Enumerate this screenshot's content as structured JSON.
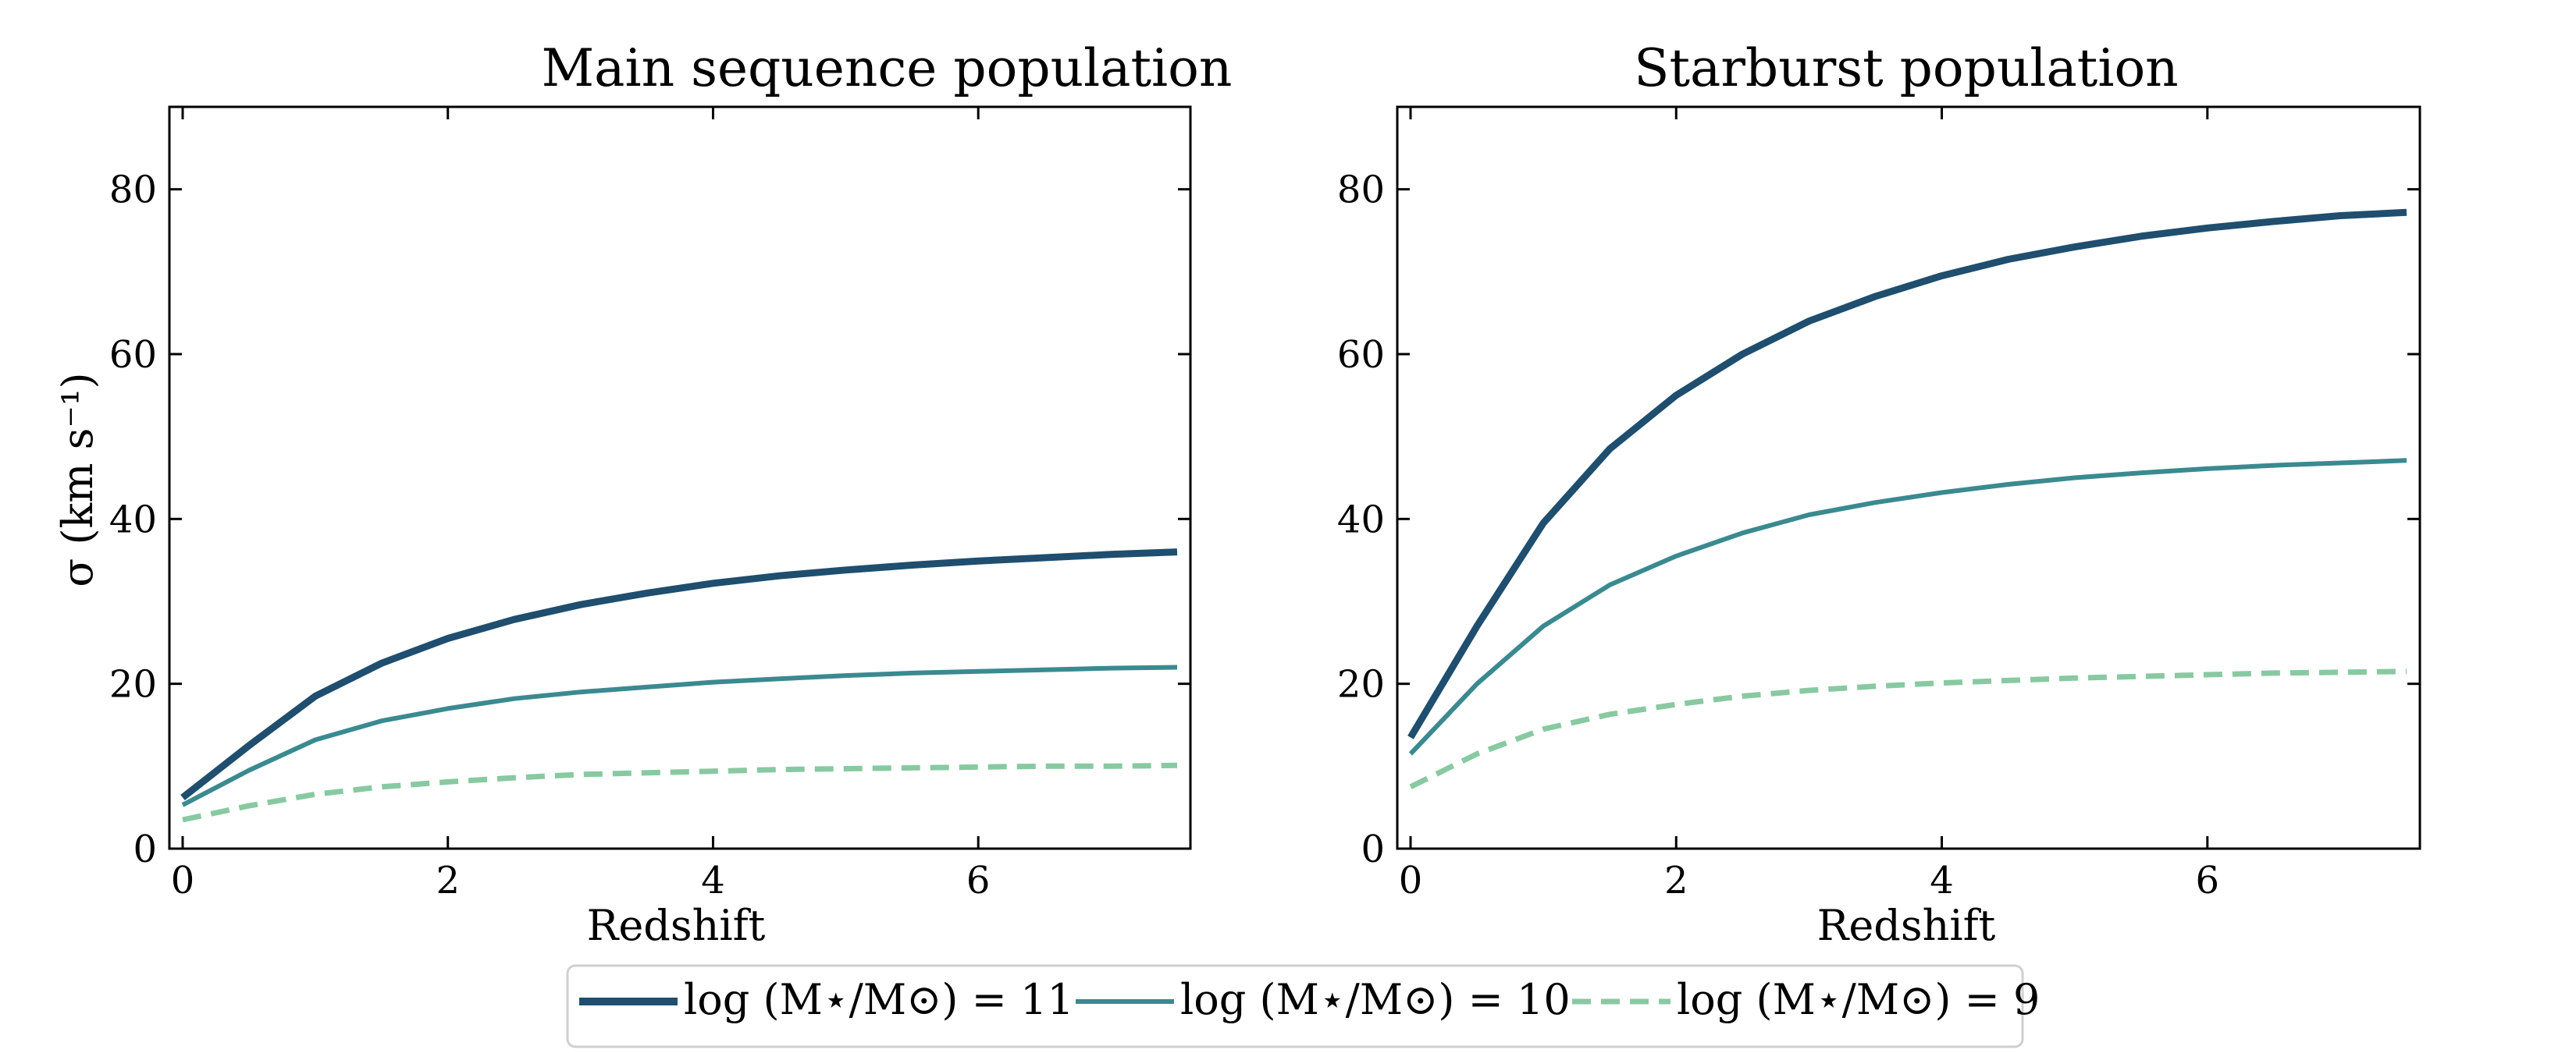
{
  "chart_data": [
    {
      "type": "line",
      "title": "Main sequence population",
      "xlabel": "Redshift",
      "ylabel": "σ (km s⁻¹)",
      "xlim": [
        -0.1,
        7.6
      ],
      "ylim": [
        0,
        90
      ],
      "xticks": [
        0,
        2,
        4,
        6
      ],
      "xtick_labels": [
        "0",
        "2",
        "4",
        "6"
      ],
      "yticks": [
        0,
        20,
        40,
        60,
        80
      ],
      "ytick_labels": [
        "0",
        "20",
        "40",
        "60",
        "80"
      ],
      "series": [
        {
          "name": "log (M⋆/M⊙) = 11",
          "x": [
            0,
            0.5,
            1,
            1.5,
            2,
            2.5,
            3,
            3.5,
            4,
            4.5,
            5,
            5.5,
            6,
            6.5,
            7,
            7.5
          ],
          "y": [
            6.2,
            12.5,
            18.5,
            22.5,
            25.5,
            27.8,
            29.6,
            31.0,
            32.2,
            33.1,
            33.8,
            34.4,
            34.9,
            35.3,
            35.7,
            36.0
          ]
        },
        {
          "name": "log (M⋆/M⊙) = 10",
          "x": [
            0,
            0.5,
            1,
            1.5,
            2,
            2.5,
            3,
            3.5,
            4,
            4.5,
            5,
            5.5,
            6,
            6.5,
            7,
            7.5
          ],
          "y": [
            5.3,
            9.5,
            13.2,
            15.5,
            17.0,
            18.2,
            19.0,
            19.6,
            20.2,
            20.6,
            21.0,
            21.3,
            21.5,
            21.7,
            21.9,
            22.0
          ]
        },
        {
          "name": "log (M⋆/M⊙) = 9",
          "x": [
            0,
            0.5,
            1,
            1.5,
            2,
            2.5,
            3,
            3.5,
            4,
            4.5,
            5,
            5.5,
            6,
            6.5,
            7,
            7.5
          ],
          "y": [
            3.5,
            5.2,
            6.6,
            7.5,
            8.1,
            8.6,
            9.0,
            9.2,
            9.4,
            9.6,
            9.7,
            9.8,
            9.9,
            10.0,
            10.0,
            10.1
          ]
        }
      ]
    },
    {
      "type": "line",
      "title": "Starburst population",
      "xlabel": "Redshift",
      "ylabel": "",
      "xlim": [
        -0.1,
        7.6
      ],
      "ylim": [
        0,
        90
      ],
      "xticks": [
        0,
        2,
        4,
        6
      ],
      "xtick_labels": [
        "0",
        "2",
        "4",
        "6"
      ],
      "yticks": [
        0,
        20,
        40,
        60,
        80
      ],
      "ytick_labels": [
        "0",
        "20",
        "40",
        "60",
        "80"
      ],
      "series": [
        {
          "name": "log (M⋆/M⊙) = 11",
          "x": [
            0,
            0.5,
            1,
            1.5,
            2,
            2.5,
            3,
            3.5,
            4,
            4.5,
            5,
            5.5,
            6,
            6.5,
            7,
            7.5
          ],
          "y": [
            13.5,
            27.0,
            39.5,
            48.5,
            55.0,
            60.0,
            64.0,
            67.0,
            69.5,
            71.5,
            73.0,
            74.3,
            75.3,
            76.1,
            76.8,
            77.2
          ]
        },
        {
          "name": "log (M⋆/M⊙) = 10",
          "x": [
            0,
            0.5,
            1,
            1.5,
            2,
            2.5,
            3,
            3.5,
            4,
            4.5,
            5,
            5.5,
            6,
            6.5,
            7,
            7.5
          ],
          "y": [
            11.5,
            20.0,
            27.0,
            32.0,
            35.5,
            38.3,
            40.5,
            42.0,
            43.2,
            44.2,
            45.0,
            45.6,
            46.1,
            46.5,
            46.8,
            47.1
          ]
        },
        {
          "name": "log (M⋆/M⊙) = 9",
          "x": [
            0,
            0.5,
            1,
            1.5,
            2,
            2.5,
            3,
            3.5,
            4,
            4.5,
            5,
            5.5,
            6,
            6.5,
            7,
            7.5
          ],
          "y": [
            7.5,
            11.5,
            14.5,
            16.3,
            17.5,
            18.5,
            19.2,
            19.7,
            20.1,
            20.4,
            20.7,
            20.9,
            21.1,
            21.3,
            21.4,
            21.5
          ]
        }
      ]
    }
  ],
  "legend": {
    "entries": [
      {
        "label": "log (M⋆/M⊙) = 11",
        "color": "#1f4e6e",
        "style": "solid-thick"
      },
      {
        "label": "log (M⋆/M⊙) = 10",
        "color": "#3a8a90",
        "style": "solid"
      },
      {
        "label": "log (M⋆/M⊙) = 9",
        "color": "#88c9a1",
        "style": "dashed"
      }
    ]
  },
  "colors": {
    "series_11": "#1f4e6e",
    "series_10": "#3a8a90",
    "series_9": "#88c9a1"
  }
}
